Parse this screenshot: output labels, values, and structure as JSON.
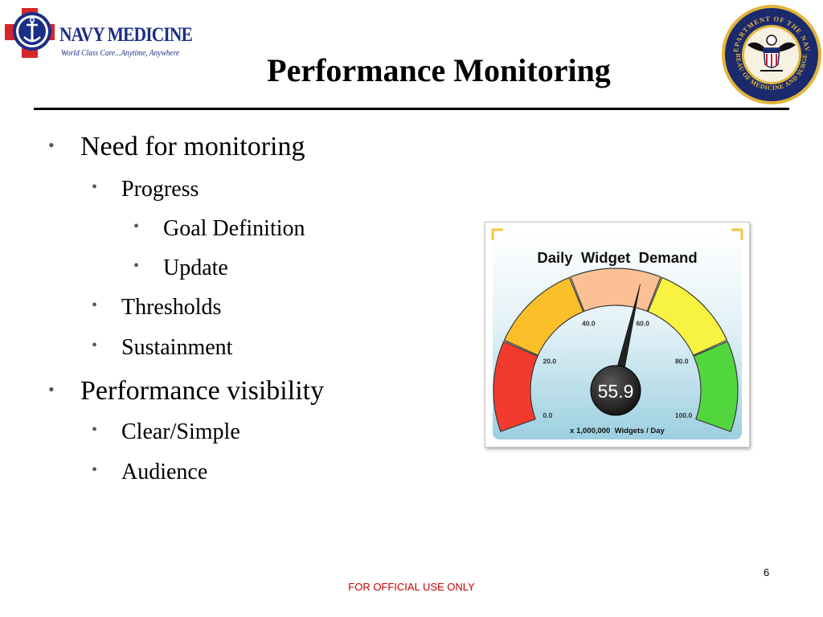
{
  "header": {
    "logo_name": "NAVY MEDICINE",
    "logo_tagline": "World Class Care...Anytime, Anywhere",
    "seal_text_top": "DEPARTMENT OF THE NAVY",
    "seal_text_bottom": "BUREAU OF MEDICINE AND SURGERY"
  },
  "slide": {
    "title": "Performance Monitoring",
    "bullets": [
      {
        "level": 1,
        "text": "Need for monitoring"
      },
      {
        "level": 2,
        "text": "Progress"
      },
      {
        "level": 3,
        "text": "Goal Definition"
      },
      {
        "level": 3,
        "text": "Update"
      },
      {
        "level": 2,
        "text": "Thresholds"
      },
      {
        "level": 2,
        "text": "Sustainment"
      },
      {
        "level": 1,
        "text": "Performance visibility"
      },
      {
        "level": 2,
        "text": "Clear/Simple"
      },
      {
        "level": 2,
        "text": "Audience"
      }
    ]
  },
  "gauge": {
    "title": "Daily  Widget  Demand",
    "value": 55.9,
    "value_label": "55.9",
    "min": 0,
    "max": 100,
    "units": "x 1,000,000  Widgets / Day",
    "ticks": [
      "0.0",
      "20.0",
      "40.0",
      "60.0",
      "80.0",
      "100.0"
    ],
    "bands": [
      {
        "from": 0,
        "to": 20,
        "color": "#f23a2e"
      },
      {
        "from": 20,
        "to": 40,
        "color": "#fbbf2a"
      },
      {
        "from": 40,
        "to": 60,
        "color": "#fbc093"
      },
      {
        "from": 60,
        "to": 80,
        "color": "#f8f240"
      },
      {
        "from": 80,
        "to": 100,
        "color": "#52d63e"
      }
    ]
  },
  "footer": {
    "classification": "FOR OFFICIAL USE ONLY",
    "page_number": "6"
  }
}
